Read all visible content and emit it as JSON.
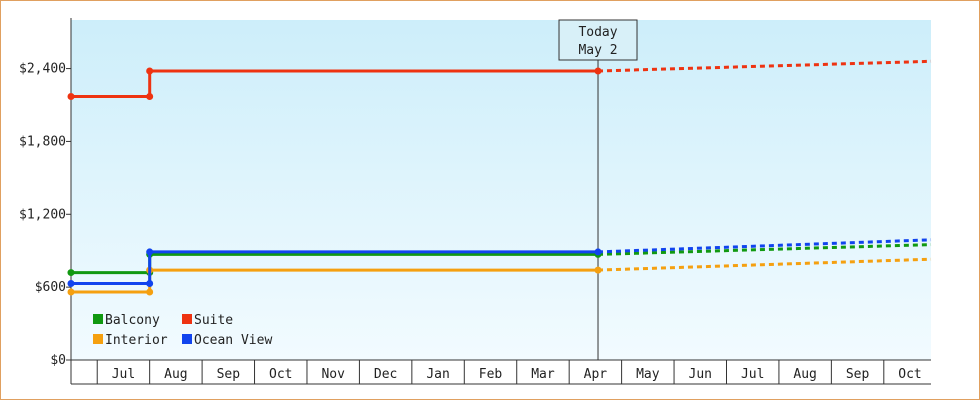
{
  "chart_data": {
    "type": "line",
    "step": true,
    "title": "",
    "xlabel": "",
    "ylabel": "",
    "ylim": [
      0,
      2800
    ],
    "y_ticks": [
      {
        "value": 0,
        "label": "$0"
      },
      {
        "value": 600,
        "label": "$600"
      },
      {
        "value": 1200,
        "label": "$1,200"
      },
      {
        "value": 1800,
        "label": "$1,800"
      },
      {
        "value": 2400,
        "label": "$2,400"
      }
    ],
    "x_months": [
      "",
      "Jul",
      "Aug",
      "Sep",
      "Oct",
      "Nov",
      "Dec",
      "Jan",
      "Feb",
      "Mar",
      "Apr",
      "May",
      "Jun",
      "Jul",
      "Aug",
      "Sep",
      "Oct"
    ],
    "xlim": [
      0,
      16.4
    ],
    "today": {
      "line1": "Today",
      "line2": "May 2",
      "x": 10.05
    },
    "background_gradient": [
      "#cdeefa",
      "#f2fbff"
    ],
    "grid": false,
    "legend_position": "bottom-left",
    "series": [
      {
        "name": "Balcony",
        "color": "#119911",
        "actual": [
          [
            0,
            720
          ],
          [
            1.5,
            720
          ],
          [
            1.5,
            870
          ],
          [
            10.05,
            870
          ]
        ],
        "forecast": [
          [
            10.05,
            870
          ],
          [
            16.4,
            950
          ]
        ]
      },
      {
        "name": "Suite",
        "color": "#ee3311",
        "actual": [
          [
            0,
            2170
          ],
          [
            1.5,
            2170
          ],
          [
            1.5,
            2380
          ],
          [
            10.05,
            2380
          ]
        ],
        "forecast": [
          [
            10.05,
            2380
          ],
          [
            16.4,
            2460
          ]
        ]
      },
      {
        "name": "Interior",
        "color": "#f5a010",
        "actual": [
          [
            0,
            560
          ],
          [
            1.5,
            560
          ],
          [
            1.5,
            740
          ],
          [
            10.05,
            740
          ]
        ],
        "forecast": [
          [
            10.05,
            740
          ],
          [
            16.4,
            830
          ]
        ]
      },
      {
        "name": "Ocean View",
        "color": "#1144ee",
        "actual": [
          [
            0,
            630
          ],
          [
            1.5,
            630
          ],
          [
            1.5,
            890
          ],
          [
            10.05,
            890
          ]
        ],
        "forecast": [
          [
            10.05,
            890
          ],
          [
            16.4,
            990
          ]
        ]
      }
    ],
    "markers_x": [
      0,
      1.5,
      10.05
    ]
  }
}
